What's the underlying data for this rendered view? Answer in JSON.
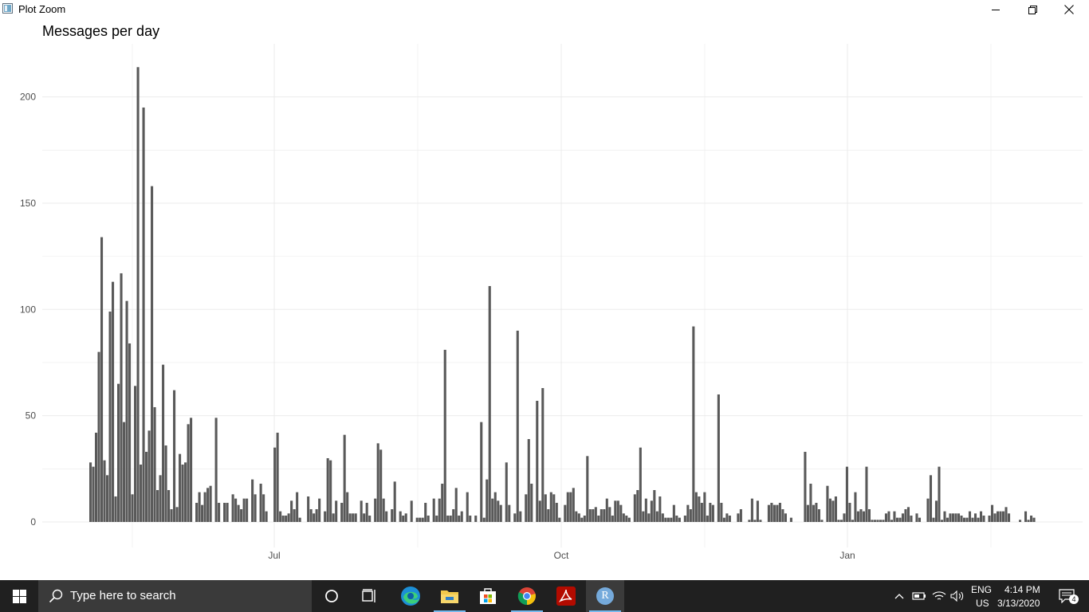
{
  "window": {
    "title": "Plot Zoom",
    "icon": "plot-window-icon",
    "controls": [
      "minimize-icon",
      "restore-icon",
      "close-icon"
    ]
  },
  "plot": {
    "title": "Messages per day"
  },
  "chart_data": {
    "type": "bar",
    "title": "Messages per day",
    "xlabel": "",
    "ylabel": "",
    "x_axis": "date",
    "x_ticks": [
      "Jul",
      "Oct",
      "Jan"
    ],
    "y_ticks": [
      0,
      50,
      100,
      150,
      200
    ],
    "ylim": [
      0,
      215
    ],
    "grid": true,
    "values": [
      28,
      26,
      42,
      80,
      134,
      29,
      22,
      99,
      113,
      12,
      65,
      117,
      47,
      104,
      84,
      13,
      64,
      214,
      27,
      195,
      33,
      43,
      158,
      54,
      15,
      22,
      74,
      36,
      15,
      6,
      62,
      7,
      32,
      27,
      28,
      46,
      49,
      0,
      9,
      14,
      8,
      14,
      16,
      17,
      0,
      49,
      9,
      0,
      9,
      9,
      0,
      13,
      11,
      8,
      6,
      11,
      11,
      0,
      20,
      13,
      0,
      18,
      13,
      5,
      0,
      0,
      35,
      42,
      5,
      3,
      3,
      4,
      10,
      6,
      14,
      2,
      0,
      0,
      12,
      6,
      4,
      6,
      11,
      0,
      5,
      30,
      29,
      4,
      10,
      0,
      9,
      41,
      14,
      4,
      4,
      4,
      0,
      10,
      4,
      9,
      3,
      0,
      11,
      37,
      34,
      11,
      5,
      0,
      6,
      19,
      0,
      5,
      3,
      4,
      0,
      10,
      0,
      2,
      2,
      2,
      9,
      3,
      0,
      11,
      3,
      11,
      18,
      81,
      3,
      3,
      6,
      16,
      3,
      5,
      0,
      14,
      3,
      0,
      3,
      0,
      47,
      2,
      20,
      111,
      11,
      14,
      10,
      8,
      0,
      28,
      8,
      0,
      4,
      90,
      5,
      0,
      13,
      39,
      18,
      0,
      57,
      10,
      63,
      13,
      6,
      14,
      13,
      9,
      2,
      0,
      8,
      14,
      14,
      16,
      5,
      4,
      2,
      3,
      31,
      6,
      6,
      7,
      3,
      6,
      6,
      11,
      7,
      3,
      10,
      10,
      8,
      4,
      3,
      2,
      0,
      13,
      15,
      35,
      5,
      11,
      4,
      10,
      15,
      5,
      12,
      4,
      2,
      2,
      2,
      8,
      3,
      2,
      0,
      3,
      8,
      6,
      92,
      14,
      12,
      9,
      14,
      3,
      9,
      8,
      0,
      60,
      9,
      2,
      4,
      3,
      0,
      0,
      4,
      6,
      0,
      0,
      1,
      11,
      1,
      10,
      1,
      0,
      0,
      8,
      9,
      8,
      8,
      9,
      6,
      4,
      0,
      2,
      0,
      0,
      0,
      0,
      33,
      8,
      18,
      8,
      9,
      6,
      1,
      0,
      17,
      11,
      10,
      12,
      1,
      1,
      4,
      26,
      9,
      1,
      14,
      5,
      6,
      5,
      26,
      6,
      1,
      1,
      1,
      1,
      1,
      4,
      5,
      1,
      5,
      2,
      2,
      4,
      6,
      7,
      3,
      0,
      4,
      2,
      0,
      0,
      11,
      22,
      2,
      10,
      26,
      1,
      5,
      2,
      4,
      4,
      4,
      4,
      3,
      2,
      2,
      5,
      2,
      4,
      2,
      5,
      3,
      0,
      3,
      8,
      4,
      5,
      5,
      5,
      7,
      4,
      0,
      0,
      0,
      1,
      0,
      5,
      1,
      3,
      2
    ]
  },
  "taskbar": {
    "search_placeholder": "Type here to search",
    "pinned": [
      "windows-start-icon",
      "cortana-icon",
      "task-view-icon",
      "edge-icon",
      "file-explorer-icon",
      "microsoft-store-icon",
      "chrome-icon",
      "acrobat-icon",
      "r-icon"
    ],
    "r_label": "R",
    "tray": {
      "language_top": "ENG",
      "language_bottom": "US",
      "time": "4:14 PM",
      "date": "3/13/2020",
      "notification_count": "4"
    }
  },
  "colors": {
    "bar": "#595959",
    "grid": "#ebebeb",
    "taskbar": "#202020",
    "accent": "#76b9ed"
  }
}
